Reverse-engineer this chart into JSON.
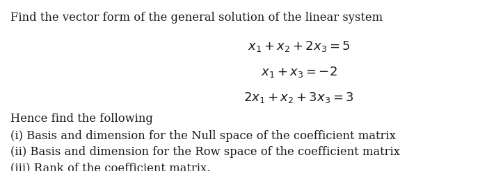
{
  "bg_color": "#ffffff",
  "text_color": "#1a1a1a",
  "intro_line": "Find the vector form of the general solution of the linear system",
  "eq1": "$x_1 + x_2 + 2x_3 = 5$",
  "eq2": "$x_1 + x_3 = {-2}$",
  "eq3": "$2x_1 + x_2 + 3x_3 = 3$",
  "hence_line": "Hence find the following",
  "item_i": "(i) Basis and dimension for the Null space of the coefficient matrix",
  "item_ii": "(ii) Basis and dimension for the Row space of the coefficient matrix",
  "item_iii": "(iii) Rank of the coefficient matrix.",
  "font_size": 11.8,
  "eq_font_size": 13.0,
  "figwidth": 7.0,
  "figheight": 2.47
}
